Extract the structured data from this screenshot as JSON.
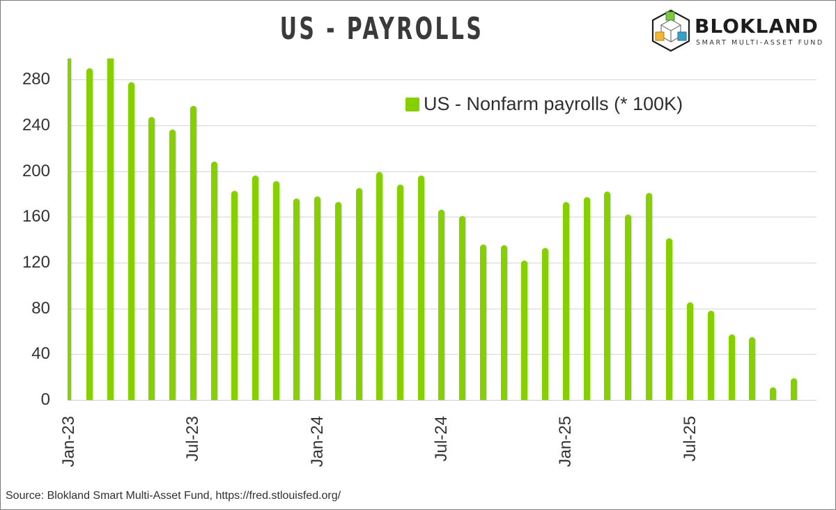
{
  "title": "US - PAYROLLS",
  "logo": {
    "name": "BLOKLAND",
    "subtitle": "SMART MULTI-ASSET FUND",
    "colors": {
      "green": "#7ac943",
      "orange": "#f5b731",
      "blue": "#3aa0c8"
    }
  },
  "legend": {
    "label": "US - Nonfarm payrolls (* 100K)",
    "color": "#86cf00"
  },
  "source": "Source: Blokland Smart Multi-Asset Fund, https://fred.stlouisfed.org/",
  "chart_data": {
    "type": "bar",
    "title": "US - PAYROLLS",
    "xlabel": "",
    "ylabel": "",
    "ylim": [
      0,
      300
    ],
    "yticks": [
      0,
      40,
      80,
      120,
      160,
      200,
      240,
      280
    ],
    "xtick_labels": [
      "Jan-23",
      "Jul-23",
      "Jan-24",
      "Jul-24",
      "Jan-25",
      "Jul-25"
    ],
    "grid": true,
    "legend_position": "upper right",
    "bar_color": "#86cf00",
    "categories": [
      "Jan-23",
      "Feb-23",
      "Mar-23",
      "Apr-23",
      "May-23",
      "Jun-23",
      "Jul-23",
      "Aug-23",
      "Sep-23",
      "Oct-23",
      "Nov-23",
      "Dec-23",
      "Jan-24",
      "Feb-24",
      "Mar-24",
      "Apr-24",
      "May-24",
      "Jun-24",
      "Jul-24",
      "Aug-24",
      "Sep-24",
      "Oct-24",
      "Nov-24",
      "Dec-24",
      "Jan-25",
      "Feb-25",
      "Mar-25",
      "Apr-25",
      "May-25",
      "Jun-25",
      "Jul-25",
      "Aug-25",
      "Sep-25",
      "Oct-25",
      "Nov-25",
      "Dec-25"
    ],
    "series": [
      {
        "name": "US - Nonfarm payrolls (* 100K)",
        "values": [
          300,
          290,
          300,
          278,
          247,
          236,
          257,
          208,
          183,
          196,
          191,
          176,
          178,
          173,
          185,
          199,
          188,
          196,
          166,
          161,
          136,
          135,
          122,
          133,
          173,
          177,
          182,
          162,
          181,
          141,
          85,
          78,
          57,
          55,
          11,
          19
        ],
        "clipped_at_top": [
          "Jan-23",
          "Mar-23"
        ]
      }
    ]
  }
}
